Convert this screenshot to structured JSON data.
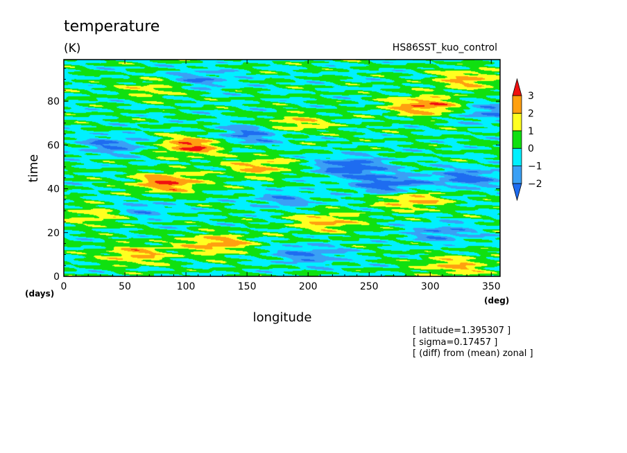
{
  "title": "temperature",
  "units": "(K)",
  "experiment": "HS86SST_kuo_control",
  "notes": [
    "[ latitude=1.395307 ]",
    "[ sigma=0.17457 ]",
    "[ (diff) from (mean) zonal ]"
  ],
  "colors": {
    "lt_-2": "#1e6cf0",
    "-2_-1": "#3aa0f5",
    "-1_0": "#00f0ff",
    "0_1": "#10e010",
    "1_2": "#ffff20",
    "2_3": "#ffa010",
    "gt_3": "#f01010"
  },
  "chart_data": {
    "type": "heatmap",
    "title": "temperature",
    "xlabel": "longitude",
    "x_unit": "(deg)",
    "ylabel": "time",
    "y_unit": "(days)",
    "xlim": [
      0,
      357.2
    ],
    "ylim": [
      0,
      99
    ],
    "x_ticks": [
      0,
      50,
      100,
      150,
      200,
      250,
      300,
      350
    ],
    "y_ticks": [
      0,
      20,
      40,
      60,
      80
    ],
    "colorbar": {
      "levels": [
        -2,
        -1,
        0,
        1,
        2,
        3
      ],
      "extend": "both"
    },
    "features": [
      {
        "x": 85,
        "y": 43,
        "value": 3.1
      },
      {
        "x": 105,
        "y": 60,
        "value": 3.1
      },
      {
        "x": 295,
        "y": 78,
        "value": 3.0
      },
      {
        "x": 125,
        "y": 15,
        "value": 2.6
      },
      {
        "x": 285,
        "y": 35,
        "value": 2.3
      },
      {
        "x": 330,
        "y": 90,
        "value": 2.2
      },
      {
        "x": 60,
        "y": 10,
        "value": 2.2
      },
      {
        "x": 160,
        "y": 50,
        "value": 2.1
      },
      {
        "x": 215,
        "y": 25,
        "value": 2.2
      },
      {
        "x": 320,
        "y": 5,
        "value": 2.1
      },
      {
        "x": 190,
        "y": 70,
        "value": 1.8
      },
      {
        "x": 30,
        "y": 28,
        "value": 1.9
      },
      {
        "x": 75,
        "y": 86,
        "value": 1.6
      },
      {
        "x": 235,
        "y": 50,
        "value": -3.0
      },
      {
        "x": 265,
        "y": 42,
        "value": -2.8
      },
      {
        "x": 150,
        "y": 65,
        "value": -2.3
      },
      {
        "x": 330,
        "y": 45,
        "value": -2.5
      },
      {
        "x": 40,
        "y": 60,
        "value": -2.0
      },
      {
        "x": 200,
        "y": 10,
        "value": -2.0
      },
      {
        "x": 110,
        "y": 90,
        "value": -1.8
      },
      {
        "x": 310,
        "y": 20,
        "value": -1.8
      },
      {
        "x": 60,
        "y": 30,
        "value": -1.6
      },
      {
        "x": 180,
        "y": 35,
        "value": -1.5
      },
      {
        "x": 350,
        "y": 75,
        "value": -1.8
      }
    ]
  }
}
